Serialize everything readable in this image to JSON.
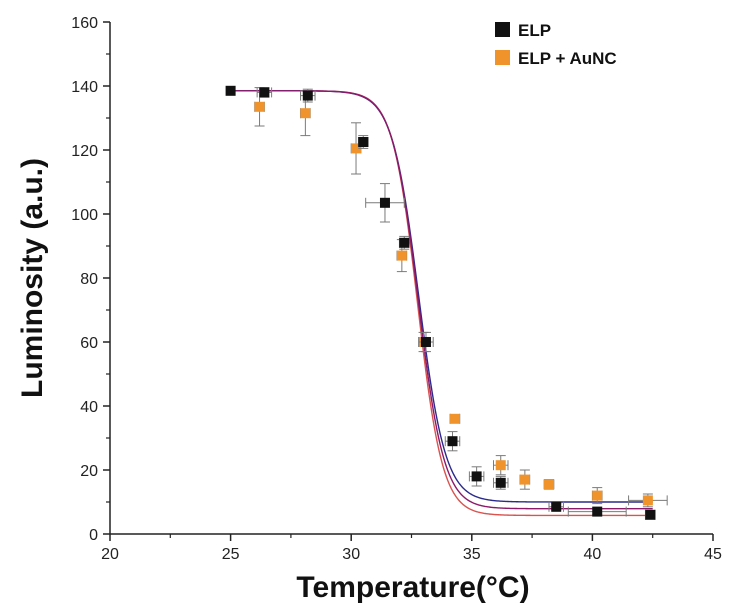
{
  "chart_data": {
    "type": "scatter",
    "xlabel": "Temperature(°C)",
    "ylabel": "Luminosity (a.u.)",
    "xlim": [
      20,
      45
    ],
    "ylim": [
      0,
      160
    ],
    "xticks": [
      "20",
      "25",
      "30",
      "35",
      "40",
      "45"
    ],
    "yticks": [
      "0",
      "20",
      "40",
      "60",
      "80",
      "100",
      "120",
      "140",
      "160"
    ],
    "grid": false,
    "legend_position": "top-right",
    "series": [
      {
        "name": "ELP",
        "color": "#111111",
        "points": [
          {
            "x": 25.0,
            "y": 138.5,
            "xerr": 0.0,
            "yerr": 0
          },
          {
            "x": 26.4,
            "y": 138.0,
            "xerr": 0.3,
            "yerr": 1.5
          },
          {
            "x": 28.2,
            "y": 137.0,
            "xerr": 0.3,
            "yerr": 2
          },
          {
            "x": 30.5,
            "y": 122.5,
            "xerr": 0.2,
            "yerr": 2
          },
          {
            "x": 31.4,
            "y": 103.5,
            "xerr": 0.8,
            "yerr": 6
          },
          {
            "x": 32.2,
            "y": 91.0,
            "xerr": 0.2,
            "yerr": 2
          },
          {
            "x": 33.1,
            "y": 60.0,
            "xerr": 0.3,
            "yerr": 3
          },
          {
            "x": 34.2,
            "y": 29.0,
            "xerr": 0.3,
            "yerr": 3
          },
          {
            "x": 35.2,
            "y": 18.0,
            "xerr": 0.3,
            "yerr": 3
          },
          {
            "x": 36.2,
            "y": 16.0,
            "xerr": 0.3,
            "yerr": 2
          },
          {
            "x": 38.5,
            "y": 8.5,
            "xerr": 0.3,
            "yerr": 1
          },
          {
            "x": 40.2,
            "y": 7.0,
            "xerr": 1.2,
            "yerr": 1
          },
          {
            "x": 42.4,
            "y": 6.0,
            "xerr": 0.2,
            "yerr": 1
          }
        ],
        "fit_curve": {
          "top": 138.5,
          "bottom": 10,
          "x0": 32.8,
          "slope": 0.55
        }
      },
      {
        "name": "ELP + AuNC",
        "color": "#f0932b",
        "points": [
          {
            "x": 26.2,
            "y": 133.5,
            "xerr": 0.2,
            "yerr": 6
          },
          {
            "x": 28.1,
            "y": 131.5,
            "xerr": 0.2,
            "yerr": 7
          },
          {
            "x": 30.2,
            "y": 120.5,
            "xerr": 0.2,
            "yerr": 8
          },
          {
            "x": 32.1,
            "y": 87.0,
            "xerr": 0.2,
            "yerr": 5
          },
          {
            "x": 33.0,
            "y": 60.0,
            "xerr": 0.2,
            "yerr": 3
          },
          {
            "x": 34.3,
            "y": 36.0,
            "xerr": 0.2,
            "yerr": 1
          },
          {
            "x": 36.2,
            "y": 21.5,
            "xerr": 0.3,
            "yerr": 3
          },
          {
            "x": 37.2,
            "y": 17.0,
            "xerr": 0.2,
            "yerr": 3
          },
          {
            "x": 38.2,
            "y": 15.5,
            "xerr": 0.2,
            "yerr": 1.5
          },
          {
            "x": 40.2,
            "y": 12.0,
            "xerr": 0.2,
            "yerr": 2.5
          },
          {
            "x": 42.3,
            "y": 10.5,
            "xerr": 0.8,
            "yerr": 2
          }
        ],
        "fit_curve": {
          "top": 138.5,
          "bottom": 5.8,
          "x0": 32.75,
          "slope": 0.52
        }
      }
    ],
    "fit_line_colors": [
      "#2b2b8c",
      "#d9534f",
      "#8b1a6b"
    ]
  }
}
